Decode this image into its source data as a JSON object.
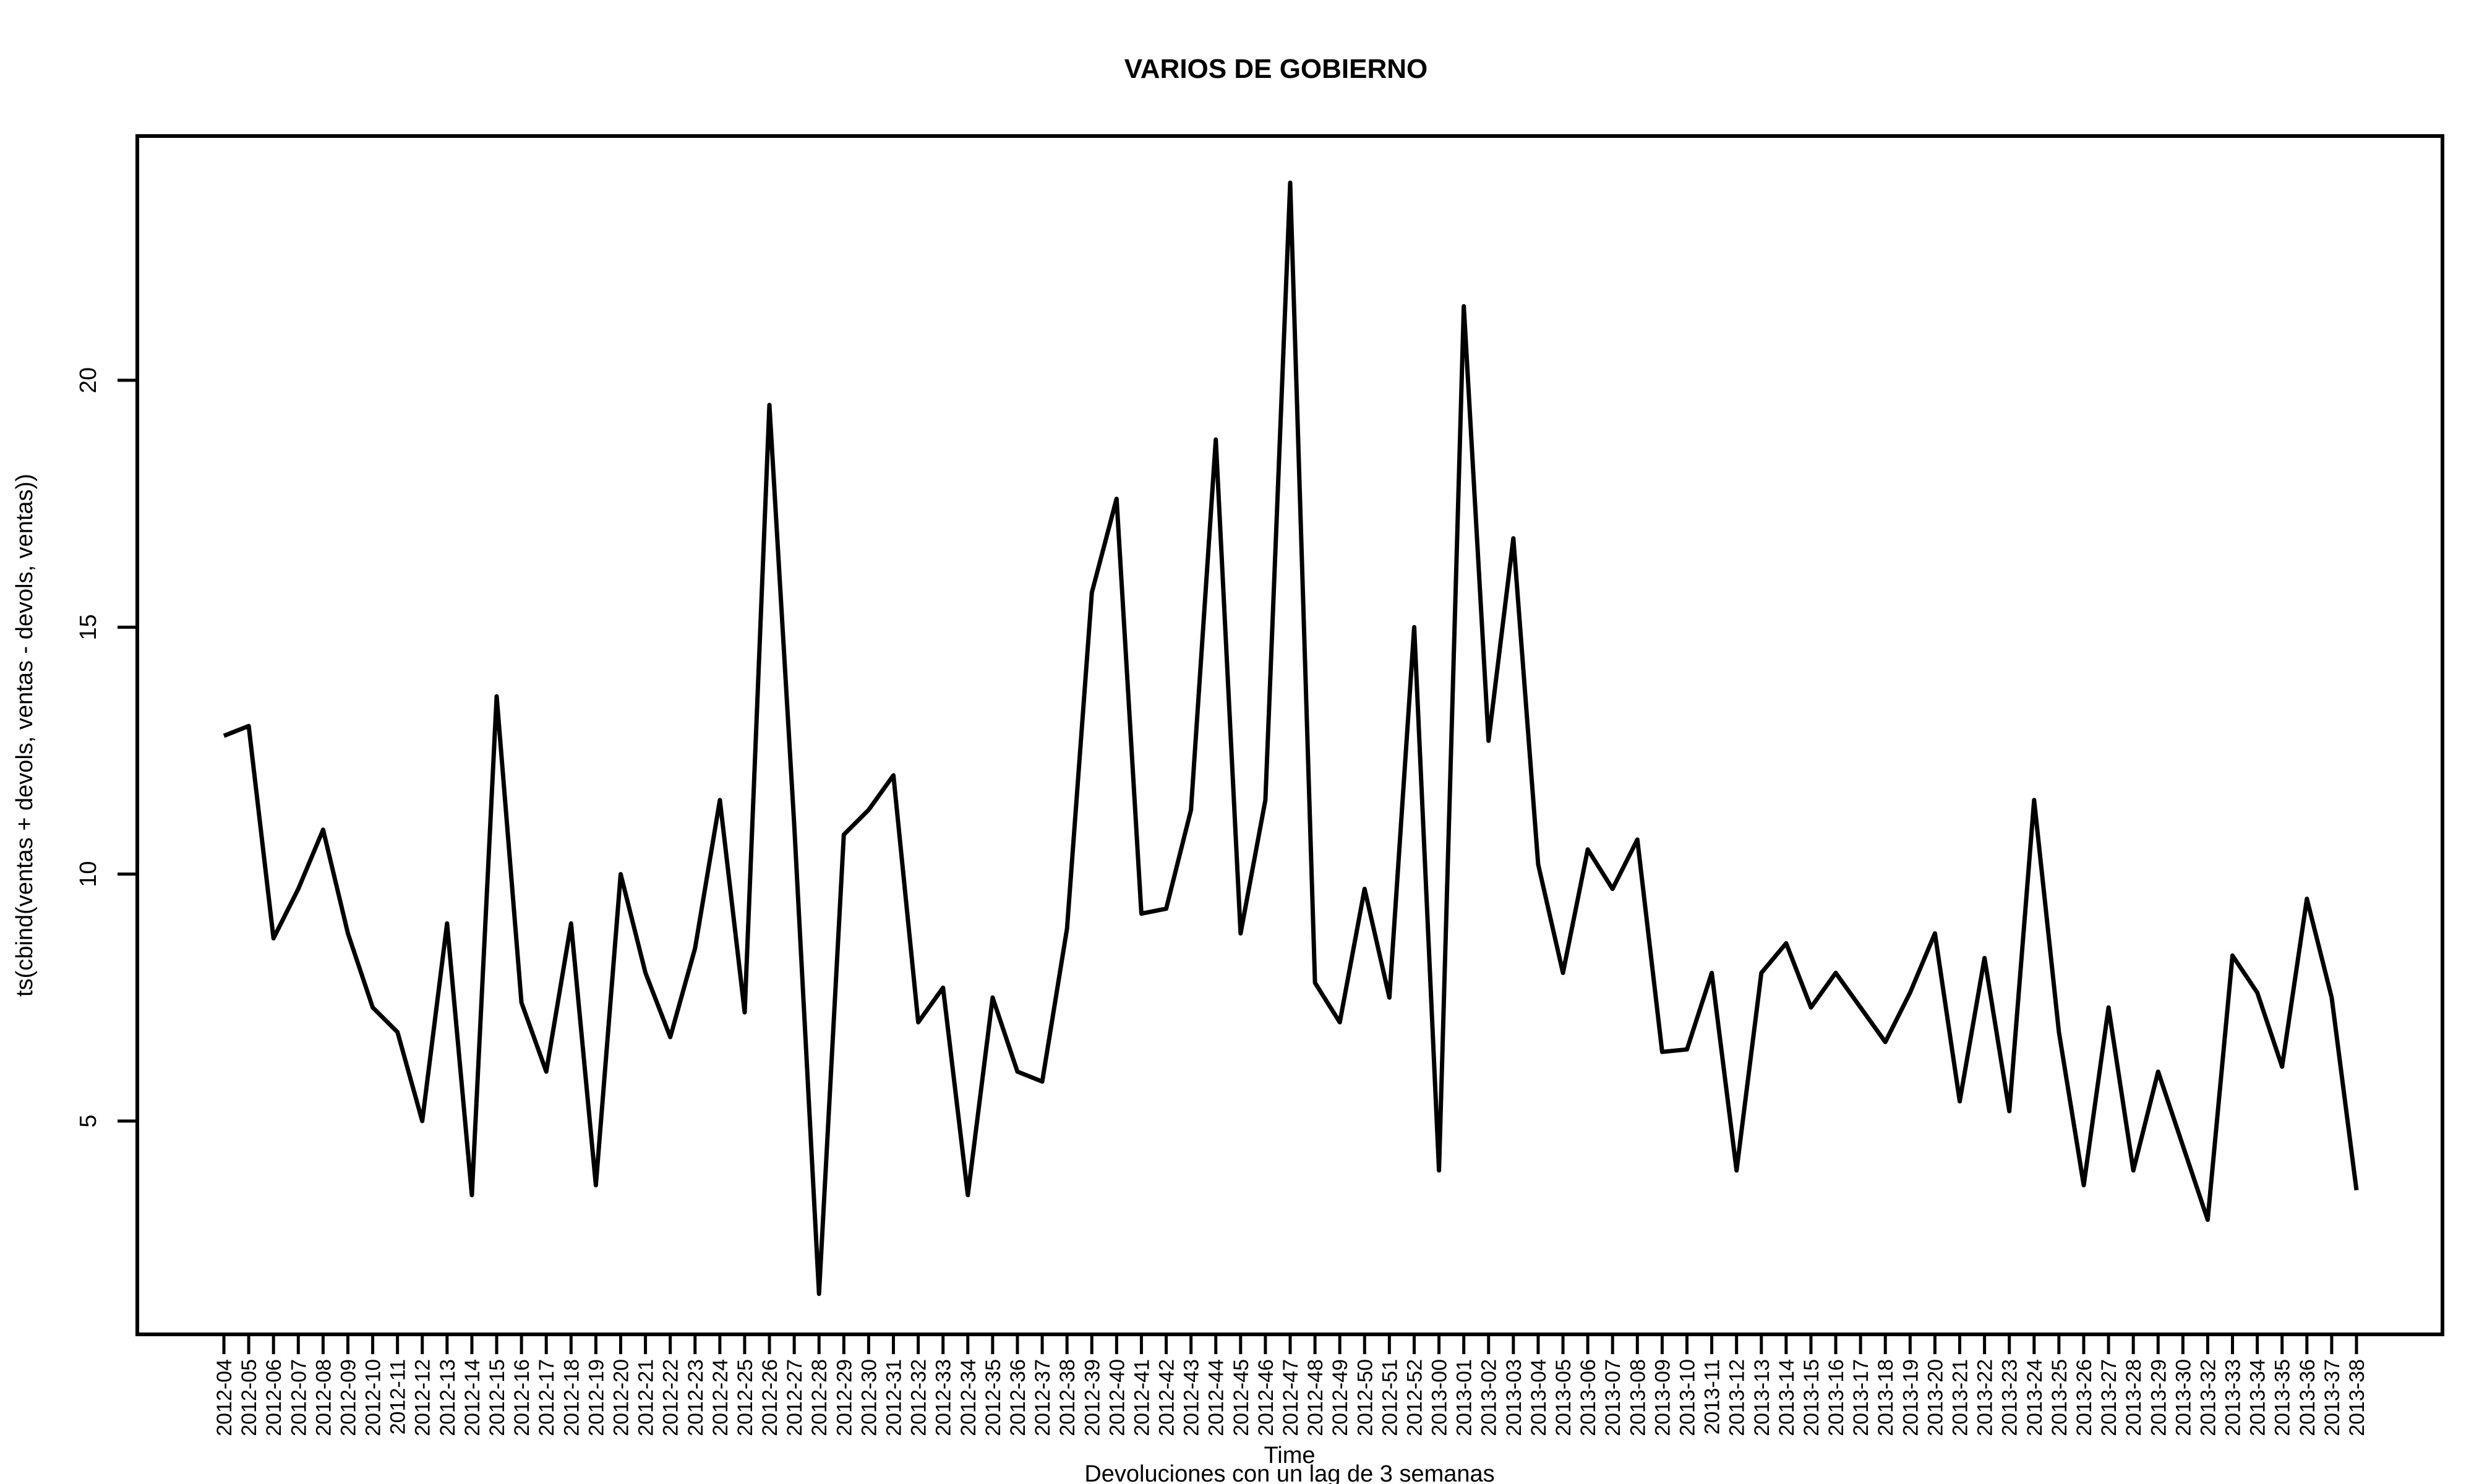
{
  "chart_data": {
    "type": "line",
    "title": "VARIOS DE GOBIERNO",
    "xlabel": "Time",
    "subtitle": "Devoluciones con un lag de 3 semanas",
    "ylabel": "ts(cbind(ventas + devols, ventas - devols, ventas))",
    "ylim": [
      0.8,
      25
    ],
    "yticks": [
      5,
      10,
      15,
      20
    ],
    "grid": false,
    "line_color": "#000000",
    "categories": [
      "2012-04",
      "2012-05",
      "2012-06",
      "2012-07",
      "2012-08",
      "2012-09",
      "2012-10",
      "2012-11",
      "2012-12",
      "2012-13",
      "2012-14",
      "2012-15",
      "2012-16",
      "2012-17",
      "2012-18",
      "2012-19",
      "2012-20",
      "2012-21",
      "2012-22",
      "2012-23",
      "2012-24",
      "2012-25",
      "2012-26",
      "2012-27",
      "2012-28",
      "2012-29",
      "2012-30",
      "2012-31",
      "2012-32",
      "2012-33",
      "2012-34",
      "2012-35",
      "2012-36",
      "2012-37",
      "2012-38",
      "2012-39",
      "2012-40",
      "2012-41",
      "2012-42",
      "2012-43",
      "2012-44",
      "2012-45",
      "2012-46",
      "2012-47",
      "2012-48",
      "2012-49",
      "2012-50",
      "2012-51",
      "2012-52",
      "2013-00",
      "2013-01",
      "2013-02",
      "2013-03",
      "2013-04",
      "2013-05",
      "2013-06",
      "2013-07",
      "2013-08",
      "2013-09",
      "2013-10",
      "2013-11",
      "2013-12",
      "2013-13",
      "2013-14",
      "2013-15",
      "2013-16",
      "2013-17",
      "2013-18",
      "2013-19",
      "2013-20",
      "2013-21",
      "2013-22",
      "2013-23",
      "2013-24",
      "2013-25",
      "2013-26",
      "2013-27",
      "2013-28",
      "2013-29",
      "2013-30",
      "2013-32",
      "2013-33",
      "2013-34",
      "2013-35",
      "2013-36",
      "2013-37",
      "2013-38"
    ],
    "values": [
      12.8,
      13.0,
      8.7,
      9.7,
      10.9,
      8.8,
      7.3,
      6.8,
      5.0,
      9.0,
      3.5,
      13.6,
      7.4,
      6.0,
      9.0,
      3.7,
      10.0,
      8.0,
      6.7,
      8.5,
      11.5,
      7.2,
      19.5,
      11.0,
      1.5,
      10.8,
      11.3,
      12.0,
      7.0,
      7.7,
      3.5,
      7.5,
      6.0,
      5.8,
      8.9,
      15.7,
      17.6,
      9.2,
      9.3,
      11.3,
      18.8,
      8.8,
      11.5,
      24.0,
      7.8,
      7.0,
      9.7,
      7.5,
      15.0,
      4.0,
      21.5,
      12.7,
      16.8,
      10.2,
      8.0,
      10.5,
      9.7,
      10.7,
      6.4,
      6.45,
      8.0,
      4.0,
      8.0,
      8.6,
      7.3,
      8.0,
      7.3,
      6.6,
      7.6,
      8.8,
      5.4,
      8.3,
      5.2,
      11.5,
      6.8,
      3.7,
      7.3,
      4.0,
      6.0,
      4.5,
      3.0,
      8.35,
      7.6,
      6.1,
      9.5,
      7.5,
      3.6
    ]
  }
}
